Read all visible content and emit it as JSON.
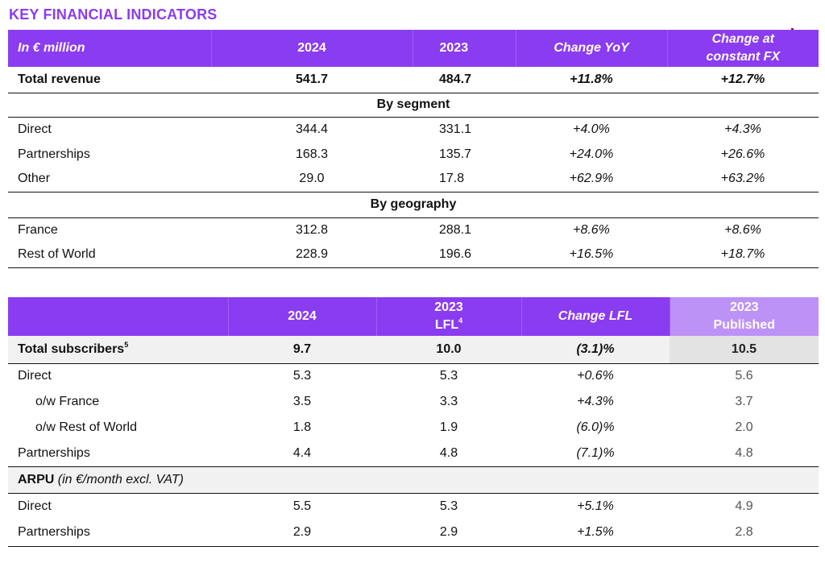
{
  "page_title": "KEY FINANCIAL INDICATORS",
  "table1": {
    "header": {
      "label": "In € million",
      "col_2024": "2024",
      "col_2023": "2023",
      "col_change": "Change YoY",
      "col_fx_line1": "Change at",
      "col_fx_line2": "constant FX"
    },
    "total": {
      "label": "Total revenue",
      "v2024": "541.7",
      "v2023": "484.7",
      "change": "+11.8%",
      "fx": "+12.7%"
    },
    "section_segment": "By segment",
    "segment_rows": [
      {
        "label": "Direct",
        "v2024": "344.4",
        "v2023": "331.1",
        "change": "+4.0%",
        "fx": "+4.3%"
      },
      {
        "label": "Partnerships",
        "v2024": "168.3",
        "v2023": "135.7",
        "change": "+24.0%",
        "fx": "+26.6%"
      },
      {
        "label": "Other",
        "v2024": "29.0",
        "v2023": "17.8",
        "change": "+62.9%",
        "fx": "+63.2%"
      }
    ],
    "section_geography": "By geography",
    "geography_rows": [
      {
        "label": "France",
        "v2024": "312.8",
        "v2023": "288.1",
        "change": "+8.6%",
        "fx": "+8.6%"
      },
      {
        "label": "Rest of World",
        "v2024": "228.9",
        "v2023": "196.6",
        "change": "+16.5%",
        "fx": "+18.7%"
      }
    ]
  },
  "table2": {
    "header": {
      "col_2024": "2024",
      "col_2023_line1": "2023",
      "col_2023_line2": "LFL",
      "col_2023_sup": "4",
      "col_change": "Change LFL",
      "col_pub_line1": "2023",
      "col_pub_line2": "Published"
    },
    "total": {
      "label": "Total subscribers",
      "sup": "5",
      "v2024": "9.7",
      "v2023": "10.0",
      "change": "(3.1)%",
      "pub": "10.5"
    },
    "rows": [
      {
        "label": "Direct",
        "v2024": "5.3",
        "v2023": "5.3",
        "change": "+0.6%",
        "pub": "5.6"
      },
      {
        "label": "o/w France",
        "v2024": "3.5",
        "v2023": "3.3",
        "change": "+4.3%",
        "pub": "3.7"
      },
      {
        "label": "o/w Rest of World",
        "v2024": "1.8",
        "v2023": "1.9",
        "change": "(6.0)%",
        "pub": "2.0"
      },
      {
        "label": "Partnerships",
        "v2024": "4.4",
        "v2023": "4.8",
        "change": "(7.1)%",
        "pub": "4.8"
      }
    ],
    "arpu": {
      "label_bold": "ARPU",
      "label_italic": "(in €/month excl. VAT)"
    },
    "arpu_rows": [
      {
        "label": "Direct",
        "v2024": "5.5",
        "v2023": "5.3",
        "change": "+5.1%",
        "pub": "4.9"
      },
      {
        "label": "Partnerships",
        "v2024": "2.9",
        "v2023": "2.9",
        "change": "+1.5%",
        "pub": "2.8"
      }
    ]
  },
  "colors": {
    "accent": "#8a3cf0",
    "published_header": "#bd92f7",
    "row_shade": "#f1f1f1"
  }
}
